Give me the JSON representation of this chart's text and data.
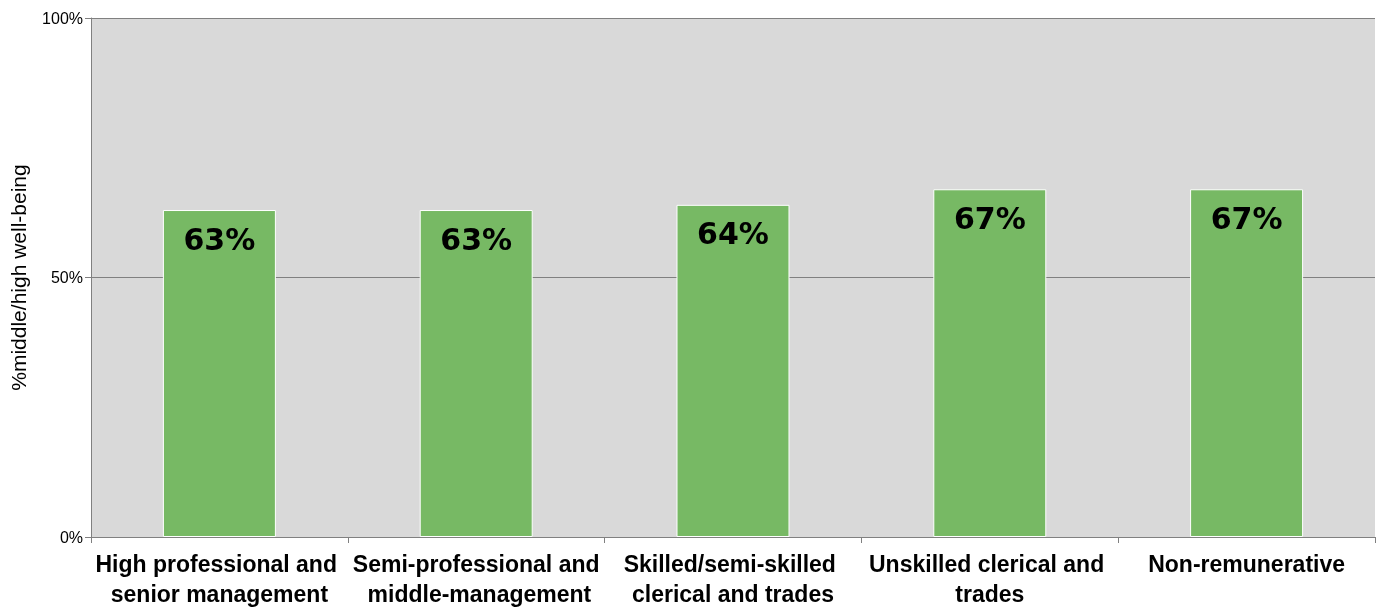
{
  "chart_data": {
    "type": "bar",
    "ylabel": "%middle/high well-being",
    "categories": [
      "High professional and senior management",
      "Semi-professional and middle-management",
      "Skilled/semi-skilled clerical and trades",
      "Unskilled clerical and trades",
      "Non-remunerative"
    ],
    "values": [
      63,
      63,
      64,
      67,
      67
    ],
    "value_labels": [
      "63%",
      "63%",
      "64%",
      "67%",
      "67%"
    ],
    "color": "#77b964",
    "ylim": [
      0,
      100
    ],
    "yticks": [
      {
        "value": 0,
        "label": "0%"
      },
      {
        "value": 50,
        "label": "50%"
      },
      {
        "value": 100,
        "label": "100%"
      }
    ],
    "grid": "y"
  }
}
